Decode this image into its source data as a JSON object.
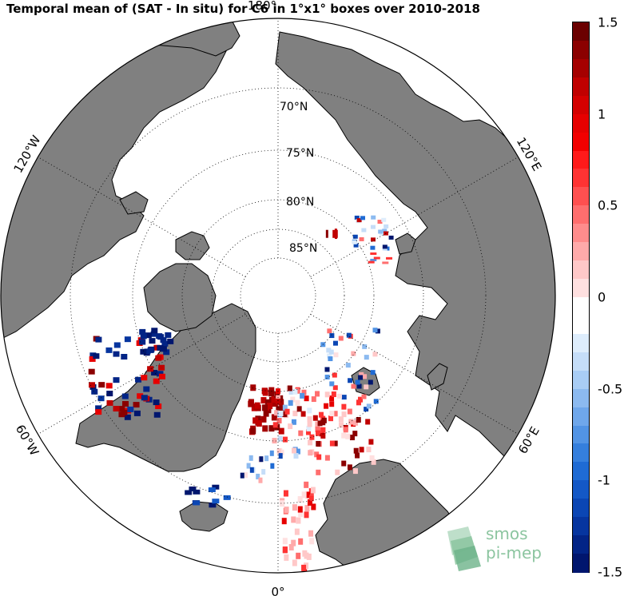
{
  "title": "Temporal mean of (SAT - In situ) for C6 in 1°x1° boxes over 2010-2018",
  "map": {
    "projection": "north-polar-stereographic",
    "land_color": "#808080",
    "ocean_color": "#ffffff",
    "graticule": {
      "latitude_labels": [
        "70°N",
        "75°N",
        "80°N",
        "85°N"
      ],
      "longitude_labels": [
        {
          "text": "180°",
          "lon": 180
        },
        {
          "text": "120°W",
          "lon": -120
        },
        {
          "text": "120°E",
          "lon": 120
        },
        {
          "text": "60°W",
          "lon": -60
        },
        {
          "text": "60°E",
          "lon": 60
        },
        {
          "text": "0°",
          "lon": 0
        }
      ]
    }
  },
  "colorbar": {
    "ticks": [
      "1.5",
      "1",
      "0.5",
      "0",
      "-0.5",
      "-1",
      "-1.5"
    ],
    "tick_values": [
      1.5,
      1,
      0.5,
      0,
      -0.5,
      -1,
      -1.5
    ],
    "vmin": -1.5,
    "vmax": 1.5,
    "colors_top_to_bottom": [
      "#6b0000",
      "#8b0000",
      "#a50000",
      "#c00000",
      "#d40000",
      "#e60000",
      "#f20000",
      "#ff1a1a",
      "#ff3333",
      "#ff5050",
      "#ff6e6e",
      "#ff8c8c",
      "#ffaaaa",
      "#ffc8c8",
      "#ffe0e0",
      "#ffffff",
      "#ffffff",
      "#deedfc",
      "#c5ddf8",
      "#a9cdf5",
      "#8cbaf0",
      "#6fa7eb",
      "#5294e5",
      "#357fdd",
      "#1f6bd4",
      "#1458c6",
      "#0b46b4",
      "#06359f",
      "#022486",
      "#00166e"
    ]
  },
  "logo": {
    "line1": "smos",
    "line2": "pi-mep"
  }
}
